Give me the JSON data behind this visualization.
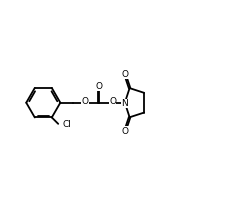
{
  "bg_color": "#ffffff",
  "line_color": "#000000",
  "line_width": 1.3,
  "font_size": 6.5,
  "figsize": [
    2.25,
    1.99
  ],
  "dpi": 100,
  "xlim": [
    0.0,
    10.5
  ],
  "ylim": [
    -2.8,
    2.8
  ]
}
